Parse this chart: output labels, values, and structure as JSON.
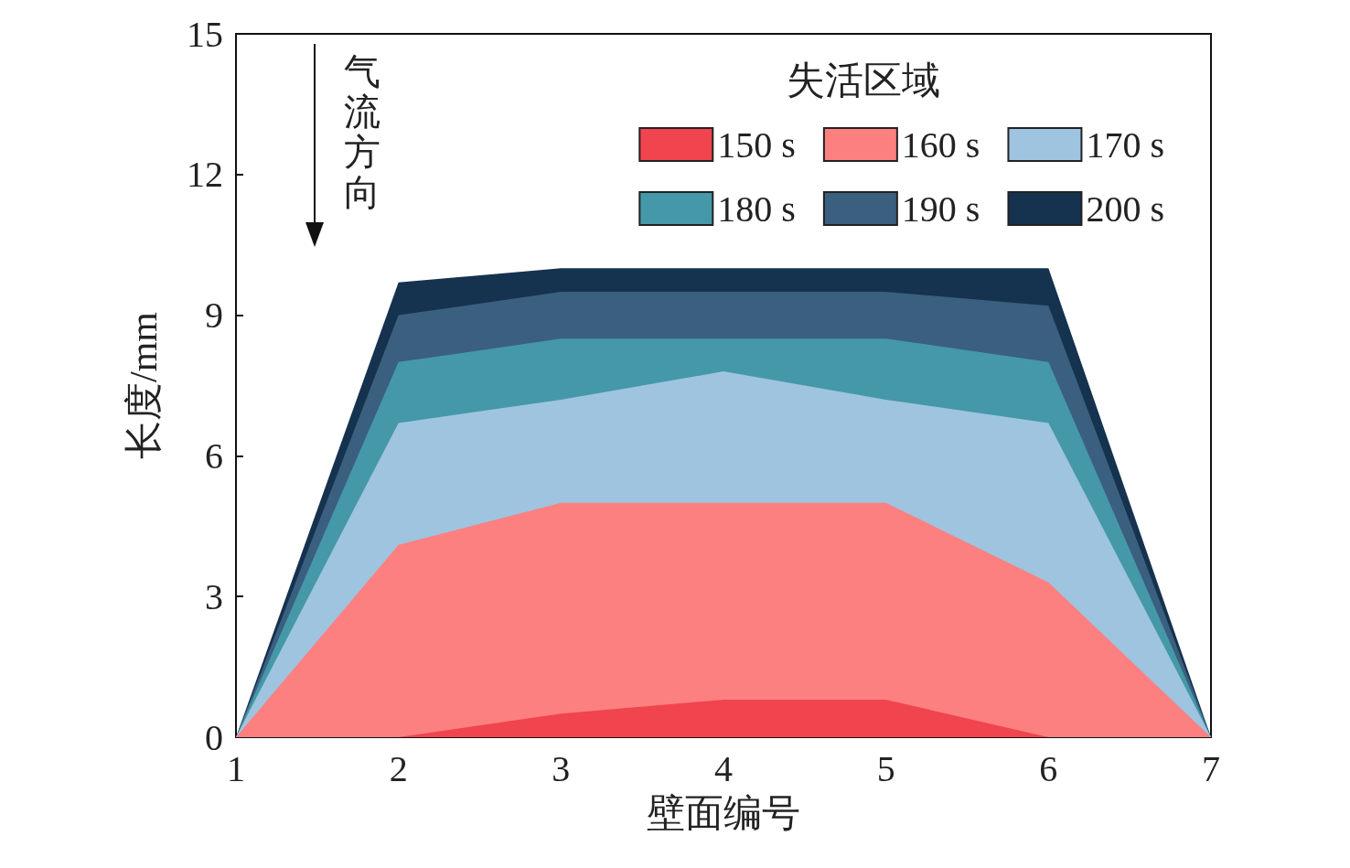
{
  "chart_data": {
    "type": "area",
    "xlabel": "壁面编号",
    "ylabel": "长度/mm",
    "legend_title": "失活区域",
    "annotations": [
      "气流方向"
    ],
    "x": [
      1,
      2,
      3,
      4,
      5,
      6,
      7
    ],
    "xlim": [
      1,
      7
    ],
    "xticks": [
      1,
      2,
      3,
      4,
      5,
      6,
      7
    ],
    "ylim": [
      0,
      15
    ],
    "yticks": [
      0,
      3,
      6,
      9,
      12,
      15
    ],
    "grid": false,
    "legend": "top right",
    "series": [
      {
        "name": "150 s",
        "color": "#f0444f",
        "values": [
          0,
          0,
          0.5,
          0.8,
          0.8,
          0,
          0
        ]
      },
      {
        "name": "160 s",
        "color": "#fc8080",
        "values": [
          0,
          4.1,
          5.0,
          5.0,
          5.0,
          3.3,
          0
        ]
      },
      {
        "name": "170 s",
        "color": "#9ec4e0",
        "values": [
          0,
          6.7,
          7.2,
          7.8,
          7.2,
          6.7,
          0
        ]
      },
      {
        "name": "180 s",
        "color": "#4598a8",
        "values": [
          0,
          8.0,
          8.5,
          8.5,
          8.5,
          8.0,
          0
        ]
      },
      {
        "name": "190 s",
        "color": "#3b5f7e",
        "values": [
          0,
          9.0,
          9.5,
          9.5,
          9.5,
          9.2,
          0
        ]
      },
      {
        "name": "200 s",
        "color": "#15324f",
        "values": [
          0,
          9.7,
          10.0,
          10.0,
          10.0,
          10.0,
          0
        ]
      }
    ]
  }
}
